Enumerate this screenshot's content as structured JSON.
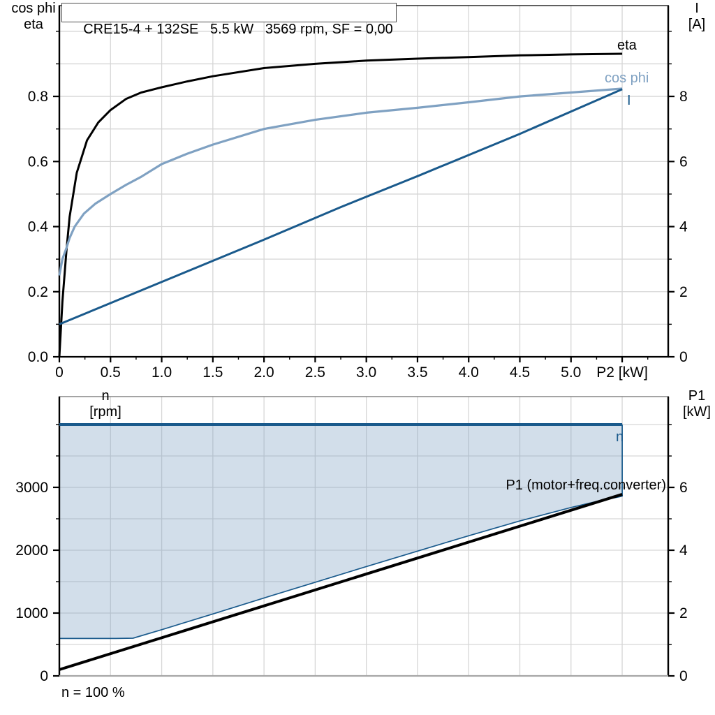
{
  "header": {
    "title": "CRE15-4 + 132SE   5.5 kW   3569 rpm, SF = 0,00"
  },
  "colors": {
    "black": "#000000",
    "dark_blue": "#1a5a8c",
    "light_blue": "#7fa1c2",
    "area_fill": "#7fa1c2",
    "grid": "#d6d6d6",
    "axis": "#000000",
    "bottom_axis_gray": "#a6a6a6",
    "title_border": "#4d4d4d",
    "background": "#ffffff"
  },
  "chart_data": [
    {
      "type": "line",
      "title": "CRE15-4 + 132SE   5.5 kW   3569 rpm, SF = 0,00",
      "xlabel": "P2 [kW]",
      "x_range": [
        0,
        5.95
      ],
      "x_ticks": {
        "values": [
          0,
          0.5,
          1,
          1.5,
          2,
          2.5,
          3,
          3.5,
          4,
          4.5,
          5
        ],
        "labels": [
          "0",
          "0.5",
          "1.0",
          "1.5",
          "2.0",
          "2.5",
          "3.0",
          "3.5",
          "4.0",
          "4.5",
          "5.0"
        ],
        "end_tick": 5.5,
        "minor_step": 0.25
      },
      "left_axis": {
        "label_lines": [
          "cos phi",
          "eta"
        ],
        "range": [
          0,
          1.079
        ],
        "tick_values": [
          0,
          0.2,
          0.4,
          0.6,
          0.8
        ],
        "tick_labels": [
          "0.0",
          "0.2",
          "0.4",
          "0.6",
          "0.8"
        ],
        "minor_step": 0.1
      },
      "right_axis": {
        "label_lines": [
          "I",
          "[A]"
        ],
        "range": [
          0,
          10.79
        ],
        "tick_values": [
          0,
          2,
          4,
          6,
          8
        ],
        "tick_labels": [
          "0",
          "2",
          "4",
          "6",
          "8"
        ],
        "minor_step": 1
      },
      "series": [
        {
          "name": "eta",
          "label": "eta",
          "axis": "left",
          "color_key": "black",
          "width": 3,
          "points": [
            [
              0,
              0
            ],
            [
              0.03,
              0.17
            ],
            [
              0.07,
              0.33
            ],
            [
              0.1,
              0.43
            ],
            [
              0.17,
              0.565
            ],
            [
              0.27,
              0.665
            ],
            [
              0.38,
              0.72
            ],
            [
              0.5,
              0.758
            ],
            [
              0.65,
              0.792
            ],
            [
              0.8,
              0.812
            ],
            [
              1.0,
              0.828
            ],
            [
              1.25,
              0.846
            ],
            [
              1.5,
              0.862
            ],
            [
              2.0,
              0.887
            ],
            [
              2.5,
              0.9
            ],
            [
              3.0,
              0.91
            ],
            [
              3.5,
              0.916
            ],
            [
              4.0,
              0.921
            ],
            [
              4.5,
              0.926
            ],
            [
              5.0,
              0.929
            ],
            [
              5.5,
              0.931
            ]
          ]
        },
        {
          "name": "cos-phi",
          "label": "cos phi",
          "axis": "left",
          "color_key": "light_blue",
          "width": 3.2,
          "points": [
            [
              0,
              0.25
            ],
            [
              0.03,
              0.3
            ],
            [
              0.07,
              0.335
            ],
            [
              0.1,
              0.365
            ],
            [
              0.15,
              0.4
            ],
            [
              0.24,
              0.44
            ],
            [
              0.35,
              0.47
            ],
            [
              0.5,
              0.5
            ],
            [
              0.65,
              0.528
            ],
            [
              0.8,
              0.553
            ],
            [
              1.0,
              0.592
            ],
            [
              1.25,
              0.624
            ],
            [
              1.5,
              0.652
            ],
            [
              2.0,
              0.7
            ],
            [
              2.5,
              0.728
            ],
            [
              3.0,
              0.75
            ],
            [
              3.5,
              0.765
            ],
            [
              4.0,
              0.782
            ],
            [
              4.5,
              0.8
            ],
            [
              5.0,
              0.812
            ],
            [
              5.5,
              0.824
            ]
          ]
        },
        {
          "name": "current",
          "label": "I",
          "axis": "right",
          "color_key": "dark_blue",
          "width": 3,
          "points": [
            [
              0,
              1.0
            ],
            [
              1.0,
              2.3
            ],
            [
              2.0,
              3.6
            ],
            [
              2.75,
              4.6
            ],
            [
              3.5,
              5.55
            ],
            [
              4.5,
              6.85
            ],
            [
              5.5,
              8.22
            ]
          ]
        }
      ]
    },
    {
      "type": "line",
      "xlabel": "",
      "x_range": [
        0,
        5.95
      ],
      "left_axis": {
        "label_lines": [
          "n",
          "[rpm]"
        ],
        "range": [
          0,
          4444
        ],
        "tick_values": [
          0,
          1000,
          2000,
          3000
        ],
        "tick_labels": [
          "0",
          "1000",
          "2000",
          "3000"
        ],
        "minor_step": 500
      },
      "right_axis": {
        "label_lines": [
          "P1",
          "[kW]"
        ],
        "range": [
          0,
          8.89
        ],
        "tick_values": [
          0,
          2,
          4,
          6
        ],
        "tick_labels": [
          "0",
          "2",
          "4",
          "6"
        ],
        "minor_step": 1
      },
      "area": {
        "name": "speed-operating-range",
        "fill_key": "area_fill",
        "fill_opacity": 0.35,
        "boundary_color_key": "dark_blue",
        "boundary_width": 1.7,
        "polygon": [
          [
            0,
            4000
          ],
          [
            5.5,
            4000
          ],
          [
            5.5,
            2860
          ],
          [
            5.25,
            2775
          ],
          [
            5.0,
            2680
          ],
          [
            4.5,
            2465
          ],
          [
            4.0,
            2230
          ],
          [
            3.5,
            1985
          ],
          [
            3.0,
            1740
          ],
          [
            2.5,
            1490
          ],
          [
            2.0,
            1240
          ],
          [
            1.5,
            985
          ],
          [
            1.0,
            735
          ],
          [
            0.72,
            600
          ],
          [
            0.55,
            595
          ],
          [
            0,
            595
          ]
        ],
        "boundary": [
          [
            0,
            595
          ],
          [
            0.55,
            595
          ],
          [
            0.72,
            600
          ],
          [
            1.0,
            735
          ],
          [
            1.5,
            985
          ],
          [
            2.0,
            1240
          ],
          [
            2.5,
            1490
          ],
          [
            3.0,
            1740
          ],
          [
            3.5,
            1985
          ],
          [
            4.0,
            2230
          ],
          [
            4.5,
            2465
          ],
          [
            5.0,
            2680
          ],
          [
            5.25,
            2775
          ],
          [
            5.5,
            2860
          ],
          [
            5.5,
            4000
          ]
        ]
      },
      "series": [
        {
          "name": "speed-n",
          "label": "n",
          "axis": "left",
          "color_key": "dark_blue",
          "width": 4,
          "points": [
            [
              0,
              4000
            ],
            [
              5.5,
              4000
            ]
          ]
        },
        {
          "name": "p1-input-power",
          "label": "P1 (motor+freq.converter)",
          "axis": "right",
          "color_key": "black",
          "width": 4,
          "points": [
            [
              0,
              0.2
            ],
            [
              5.5,
              5.78
            ]
          ]
        }
      ],
      "footnote": "n = 100 %"
    }
  ]
}
